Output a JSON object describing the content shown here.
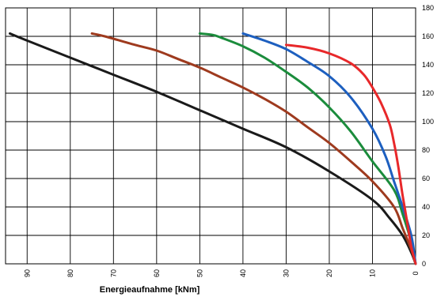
{
  "chart_data": {
    "type": "line",
    "title": "",
    "xlabel": "Energieaufnahme [kNm]",
    "ylabel": "",
    "xlim": [
      95,
      0
    ],
    "ylim": [
      0,
      180
    ],
    "x_ticks": [
      90,
      80,
      70,
      60,
      50,
      40,
      30,
      20,
      10,
      0
    ],
    "y_ticks": [
      0,
      20,
      40,
      60,
      80,
      100,
      120,
      140,
      160,
      180
    ],
    "x_tick_labels": [
      "90",
      "80",
      "70",
      "60",
      "50",
      "40",
      "30",
      "20",
      "10",
      "0"
    ],
    "y_tick_labels": [
      "0",
      "20",
      "40",
      "60",
      "80",
      "100",
      "120",
      "140",
      "160",
      "180"
    ],
    "y_axis_side": "right",
    "grid": true,
    "legend": "none",
    "series": [
      {
        "color": "#1a1a1a",
        "x": [
          94,
          90,
          80,
          70,
          60,
          50,
          40,
          30,
          20,
          10,
          6,
          3,
          1,
          0
        ],
        "y": [
          162,
          157,
          145,
          133,
          121,
          108,
          95,
          82,
          65,
          45,
          32,
          20,
          8,
          0
        ]
      },
      {
        "color": "#9e3a1e",
        "x": [
          75,
          72,
          65,
          60,
          55,
          50,
          45,
          40,
          35,
          30,
          25,
          20,
          15,
          10,
          5,
          3,
          1,
          0
        ],
        "y": [
          162,
          160,
          154,
          150,
          144,
          138,
          131,
          124,
          116,
          107,
          96,
          85,
          72,
          58,
          40,
          25,
          10,
          0
        ]
      },
      {
        "color": "#1b8c3c",
        "x": [
          50,
          47,
          45,
          40,
          35,
          30,
          25,
          20,
          15,
          10,
          5,
          3,
          1,
          0
        ],
        "y": [
          162,
          161,
          159,
          153,
          145,
          135,
          124,
          110,
          93,
          72,
          52,
          35,
          15,
          0
        ]
      },
      {
        "color": "#1d5fbf",
        "x": [
          40,
          35,
          30,
          25,
          20,
          15,
          10,
          7,
          5,
          3,
          1,
          0
        ],
        "y": [
          162,
          157,
          151,
          142,
          132,
          117,
          95,
          76,
          58,
          40,
          20,
          0
        ]
      },
      {
        "color": "#e8282a",
        "x": [
          30,
          25,
          20,
          15,
          12,
          10,
          8,
          6,
          5,
          4,
          3,
          2,
          1,
          0
        ],
        "y": [
          154,
          152,
          148,
          141,
          133,
          124,
          113,
          98,
          85,
          68,
          48,
          30,
          12,
          0
        ]
      }
    ]
  }
}
